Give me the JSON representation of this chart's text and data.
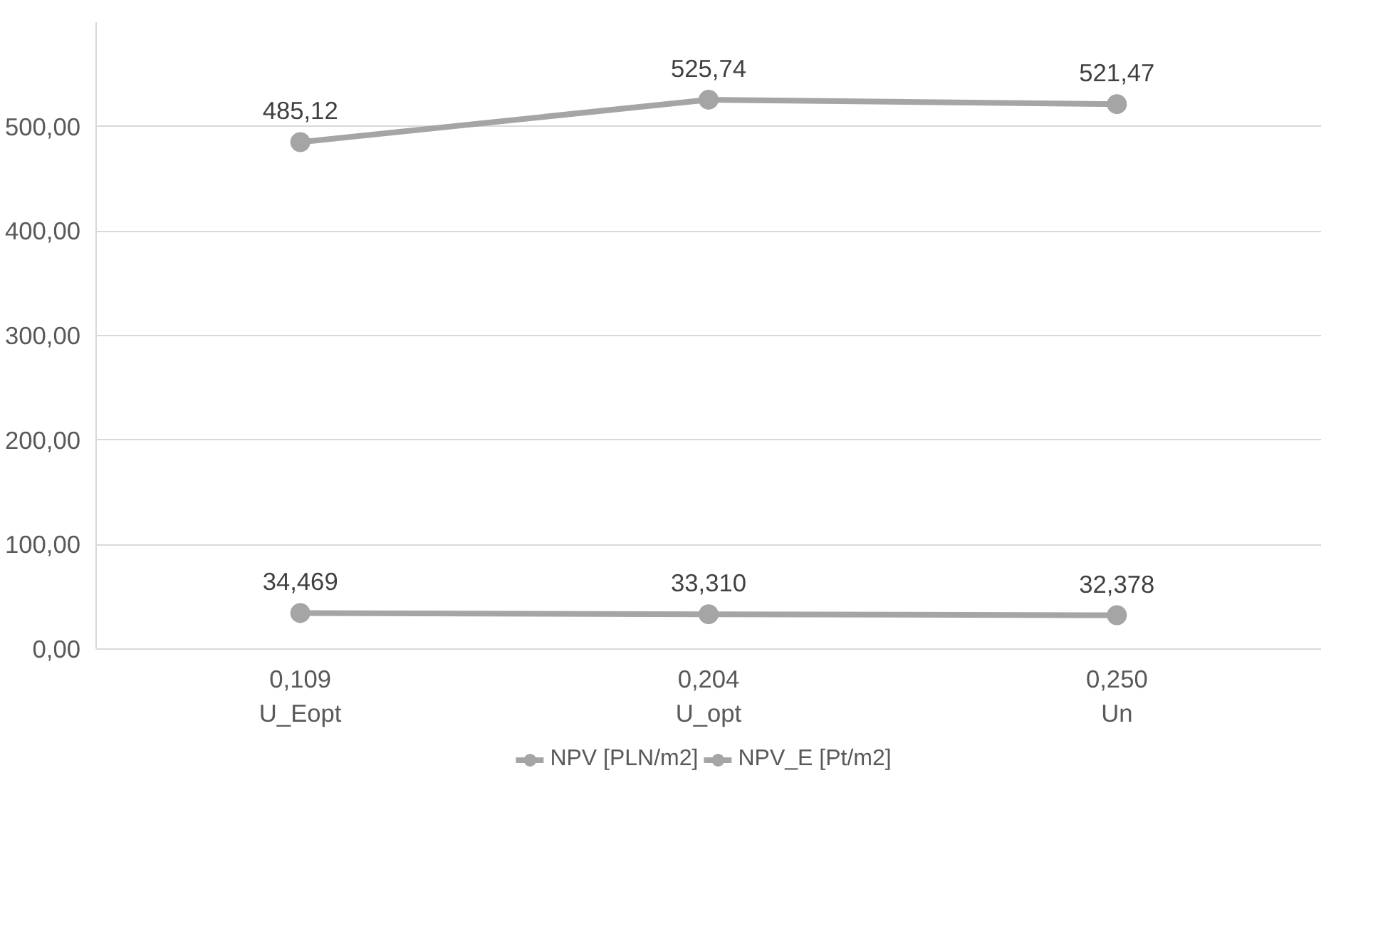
{
  "chart_data": {
    "type": "line",
    "categories": [
      "0,109\nU_Eopt",
      "0,204\nU_opt",
      "0,250\nUn"
    ],
    "series": [
      {
        "name": "NPV [PLN/m2]",
        "color": "#a5a5a5",
        "values": [
          485.12,
          525.74,
          521.47
        ],
        "value_labels": [
          "485,12",
          "525,74",
          "521,47"
        ]
      },
      {
        "name": "NPV_E [Pt/m2]",
        "color": "#a5a5a5",
        "values": [
          34.469,
          33.31,
          32.378
        ],
        "value_labels": [
          "34,469",
          "33,310",
          "32,378"
        ]
      }
    ],
    "ylim": [
      0,
      600
    ],
    "yticks": [
      {
        "value": 0,
        "label": "0,00"
      },
      {
        "value": 100,
        "label": "100,00"
      },
      {
        "value": 200,
        "label": "200,00"
      },
      {
        "value": 300,
        "label": "300,00"
      },
      {
        "value": 400,
        "label": "400,00"
      },
      {
        "value": 500,
        "label": "500,00"
      }
    ],
    "grid": "y",
    "legend": "bottom",
    "marker": "circle",
    "line_style": "solid"
  }
}
